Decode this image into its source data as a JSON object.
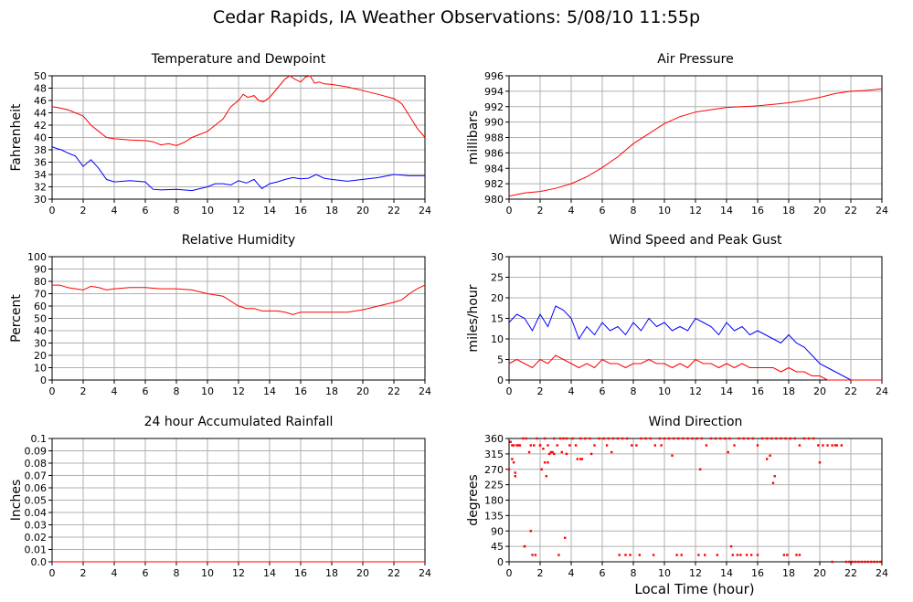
{
  "page": {
    "title": "Cedar Rapids, IA Weather Observations: 5/08/10 11:55p",
    "x_axis_label": "Local Time (hour)"
  },
  "colors": {
    "primary": "#ff0000",
    "secondary": "#0000ff",
    "grid": "#b0b0b0",
    "axis": "#000000"
  },
  "chart_data": [
    {
      "id": "temp",
      "type": "line",
      "title": "Temperature and Dewpoint",
      "ylabel": "Fahrenheit",
      "xlim": [
        0,
        24
      ],
      "ylim": [
        30,
        50
      ],
      "xticks": [
        0,
        2,
        4,
        6,
        8,
        10,
        12,
        14,
        16,
        18,
        20,
        22,
        24
      ],
      "yticks": [
        30,
        32,
        34,
        36,
        38,
        40,
        42,
        44,
        46,
        48,
        50
      ],
      "series": [
        {
          "color": "#ff0000",
          "x": [
            0,
            0.5,
            1,
            1.5,
            2,
            2.5,
            3,
            3.5,
            4,
            5,
            6,
            6.5,
            7,
            7.5,
            8,
            8.5,
            9,
            9.5,
            10,
            10.5,
            11,
            11.5,
            12,
            12.3,
            12.6,
            13,
            13.3,
            13.6,
            14,
            14.5,
            15,
            15.3,
            15.6,
            16,
            16.3,
            16.6,
            16.9,
            17.2,
            17.5,
            18,
            19,
            20,
            21,
            22,
            22.5,
            23,
            23.5,
            24
          ],
          "y": [
            45,
            44.8,
            44.5,
            44,
            43.5,
            42,
            41,
            40,
            39.8,
            39.6,
            39.5,
            39.3,
            38.8,
            39,
            38.7,
            39.2,
            40,
            40.5,
            41,
            42,
            43,
            45,
            46,
            47,
            46.5,
            46.8,
            46,
            45.8,
            46.5,
            48,
            49.5,
            50,
            49.5,
            49,
            49.8,
            50,
            48.8,
            49,
            48.7,
            48.6,
            48.2,
            47.6,
            47,
            46.3,
            45.5,
            43.5,
            41.5,
            40
          ]
        },
        {
          "color": "#0000ff",
          "x": [
            0,
            0.3,
            0.6,
            1,
            1.5,
            2,
            2.5,
            3,
            3.5,
            4,
            5,
            6,
            6.5,
            7,
            8,
            9,
            10,
            10.5,
            11,
            11.5,
            12,
            12.5,
            13,
            13.5,
            14,
            14.5,
            15,
            15.5,
            16,
            16.5,
            17,
            17.5,
            18,
            19,
            20,
            21,
            22,
            23,
            24
          ],
          "y": [
            38.5,
            38.2,
            38,
            37.5,
            37,
            35.3,
            36.4,
            35,
            33.2,
            32.8,
            33,
            32.8,
            31.6,
            31.5,
            31.6,
            31.4,
            32,
            32.5,
            32.5,
            32.3,
            33,
            32.6,
            33.2,
            31.7,
            32.5,
            32.8,
            33.2,
            33.5,
            33.3,
            33.4,
            34,
            33.4,
            33.2,
            32.9,
            33.2,
            33.5,
            34,
            33.8,
            33.8
          ]
        }
      ]
    },
    {
      "id": "pressure",
      "type": "line",
      "title": "Air Pressure",
      "ylabel": "millibars",
      "xlim": [
        0,
        24
      ],
      "ylim": [
        980,
        996
      ],
      "xticks": [
        0,
        2,
        4,
        6,
        8,
        10,
        12,
        14,
        16,
        18,
        20,
        22,
        24
      ],
      "yticks": [
        980,
        982,
        984,
        986,
        988,
        990,
        992,
        994,
        996
      ],
      "series": [
        {
          "color": "#ff0000",
          "x": [
            0,
            1,
            2,
            3,
            4,
            5,
            6,
            7,
            8,
            9,
            10,
            11,
            12,
            13,
            14,
            15,
            16,
            17,
            18,
            19,
            20,
            21,
            22,
            23,
            24
          ],
          "y": [
            980.4,
            980.8,
            981,
            981.4,
            982,
            982.9,
            984.1,
            985.5,
            987.2,
            988.5,
            989.8,
            990.7,
            991.3,
            991.6,
            991.9,
            992,
            992.1,
            992.3,
            992.5,
            992.8,
            993.2,
            993.7,
            994,
            994.1,
            994.3
          ]
        }
      ]
    },
    {
      "id": "humidity",
      "type": "line",
      "title": "Relative Humidity",
      "ylabel": "Percent",
      "xlim": [
        0,
        24
      ],
      "ylim": [
        0,
        100
      ],
      "xticks": [
        0,
        2,
        4,
        6,
        8,
        10,
        12,
        14,
        16,
        18,
        20,
        22,
        24
      ],
      "yticks": [
        0,
        10,
        20,
        30,
        40,
        50,
        60,
        70,
        80,
        90,
        100
      ],
      "series": [
        {
          "color": "#ff0000",
          "x": [
            0,
            0.5,
            1,
            1.5,
            2,
            2.5,
            3,
            3.5,
            4,
            5,
            6,
            7,
            8,
            9,
            10,
            10.5,
            11,
            11.5,
            12,
            12.5,
            13,
            13.5,
            14,
            14.5,
            15,
            15.5,
            16,
            17,
            18,
            19,
            20,
            21,
            22,
            22.5,
            23,
            23.5,
            24
          ],
          "y": [
            77,
            77,
            75,
            74,
            73,
            76,
            75,
            73,
            74,
            75,
            75,
            74,
            74,
            73,
            70,
            69,
            68,
            64,
            60,
            58,
            58,
            56,
            56,
            56,
            55,
            53,
            55,
            55,
            55,
            55,
            57,
            60,
            63,
            65,
            70,
            74,
            77
          ]
        }
      ]
    },
    {
      "id": "wind",
      "type": "line",
      "title": "Wind Speed and Peak Gust",
      "ylabel": "miles/hour",
      "xlim": [
        0,
        24
      ],
      "ylim": [
        0,
        30
      ],
      "xticks": [
        0,
        2,
        4,
        6,
        8,
        10,
        12,
        14,
        16,
        18,
        20,
        22,
        24
      ],
      "yticks": [
        0,
        5,
        10,
        15,
        20,
        25,
        30
      ],
      "series": [
        {
          "color": "#0000ff",
          "x": [
            0,
            0.5,
            1,
            1.5,
            2,
            2.5,
            3,
            3.5,
            4,
            4.5,
            5,
            5.5,
            6,
            6.5,
            7,
            7.5,
            8,
            8.5,
            9,
            9.5,
            10,
            10.5,
            11,
            11.5,
            12,
            12.5,
            13,
            13.5,
            14,
            14.5,
            15,
            15.5,
            16,
            16.5,
            17,
            17.5,
            18,
            18.5,
            19,
            19.5,
            20,
            20.5,
            21,
            21.5,
            22,
            22.5,
            23,
            23.5,
            24
          ],
          "y": [
            14,
            16,
            15,
            12,
            16,
            13,
            18,
            17,
            15,
            10,
            13,
            11,
            14,
            12,
            13,
            11,
            14,
            12,
            15,
            13,
            14,
            12,
            13,
            12,
            15,
            14,
            13,
            11,
            14,
            12,
            13,
            11,
            12,
            11,
            10,
            9,
            11,
            9,
            8,
            6,
            4,
            3,
            2,
            1,
            0,
            0,
            0,
            0,
            0
          ]
        },
        {
          "color": "#ff0000",
          "x": [
            0,
            0.5,
            1,
            1.5,
            2,
            2.5,
            3,
            3.5,
            4,
            4.5,
            5,
            5.5,
            6,
            6.5,
            7,
            7.5,
            8,
            8.5,
            9,
            9.5,
            10,
            10.5,
            11,
            11.5,
            12,
            12.5,
            13,
            13.5,
            14,
            14.5,
            15,
            15.5,
            16,
            16.5,
            17,
            17.5,
            18,
            18.5,
            19,
            19.5,
            20,
            20.5,
            21,
            21.5,
            22,
            22.5,
            23,
            23.5,
            24
          ],
          "y": [
            4,
            5,
            4,
            3,
            5,
            4,
            6,
            5,
            4,
            3,
            4,
            3,
            5,
            4,
            4,
            3,
            4,
            4,
            5,
            4,
            4,
            3,
            4,
            3,
            5,
            4,
            4,
            3,
            4,
            3,
            4,
            3,
            3,
            3,
            3,
            2,
            3,
            2,
            2,
            1,
            1,
            0,
            0,
            0,
            0,
            0,
            0,
            0,
            0
          ]
        }
      ]
    },
    {
      "id": "rain",
      "type": "line",
      "title": "24 hour Accumulated Rainfall",
      "ylabel": "Inches",
      "xlim": [
        0,
        24
      ],
      "ylim": [
        0,
        0.1
      ],
      "xticks": [
        0,
        2,
        4,
        6,
        8,
        10,
        12,
        14,
        16,
        18,
        20,
        22,
        24
      ],
      "yticks": [
        "0.0",
        "0.01",
        "0.02",
        "0.03",
        "0.04",
        "0.05",
        "0.06",
        "0.07",
        "0.08",
        "0.09",
        "0.1"
      ],
      "series": [
        {
          "color": "#ff0000",
          "x": [
            0,
            24
          ],
          "y": [
            0,
            0
          ]
        }
      ]
    },
    {
      "id": "direction",
      "type": "scatter",
      "title": "Wind Direction",
      "ylabel": "degrees",
      "xlim": [
        0,
        24
      ],
      "ylim": [
        0,
        360
      ],
      "xticks": [
        0,
        2,
        4,
        6,
        8,
        10,
        12,
        14,
        16,
        18,
        20,
        22,
        24
      ],
      "yticks": [
        0,
        45,
        90,
        135,
        180,
        225,
        270,
        315,
        360
      ],
      "series": [
        {
          "color": "#ff0000",
          "x": [
            0.1,
            0.2,
            0.3,
            0.5,
            0.7,
            0.9,
            1.1,
            1.4,
            1.6,
            1.8,
            2.0,
            2.2,
            2.3,
            2.5,
            2.7,
            2.9,
            3.1,
            3.3,
            3.5,
            3.7,
            3.9,
            4.1,
            4.3,
            4.6,
            4.9,
            5.2,
            5.5,
            5.8,
            6.1,
            6.4,
            6.7,
            7.0,
            7.3,
            7.6,
            7.9,
            8.2,
            8.5,
            8.8,
            9.1,
            9.4,
            9.7,
            10.0,
            10.3,
            10.6,
            10.9,
            11.2,
            11.5,
            11.8,
            12.1,
            12.4,
            12.7,
            13.0,
            13.3,
            13.6,
            13.9,
            14.2,
            14.5,
            14.8,
            15.1,
            15.4,
            15.7,
            16.0,
            16.3,
            16.6,
            16.9,
            17.2,
            17.5,
            17.8,
            18.1,
            18.4,
            18.7,
            19.0,
            19.3,
            19.6,
            19.9,
            20.2,
            20.5,
            20.8,
            21.1,
            21.4,
            0.2,
            0.3,
            1.3,
            1.5,
            2.3,
            2.6,
            2.9,
            3.4,
            3.7,
            0.4,
            0.6,
            1.0,
            1.7,
            2.1,
            2.4,
            2.8,
            3.2,
            4.7,
            5.3,
            6.3,
            7.1,
            7.5,
            7.8,
            8.4,
            9.3,
            9.8,
            10.8,
            11.1,
            12.2,
            12.6,
            13.4,
            14.4,
            14.7,
            14.9,
            15.3,
            15.6,
            16.0,
            17.7,
            17.9,
            18.5,
            18.7,
            0.0,
            0.4,
            2.0,
            2.5,
            4.4,
            4.6,
            6.6,
            10.5,
            12.3,
            14.1,
            16.6,
            16.8,
            17.0,
            20.0,
            21.0,
            1.0,
            1.4,
            3.6,
            14.3,
            17.1,
            21.7,
            21.9,
            22.1,
            22.3,
            22.5,
            22.7,
            22.9,
            23.1,
            23.3,
            23.5,
            23.7,
            23.9,
            20.8
          ],
          "y": [
            350,
            340,
            340,
            340,
            340,
            360,
            360,
            340,
            340,
            360,
            340,
            330,
            360,
            340,
            320,
            360,
            340,
            360,
            360,
            360,
            340,
            360,
            340,
            360,
            360,
            360,
            340,
            360,
            360,
            360,
            360,
            360,
            360,
            360,
            340,
            340,
            360,
            360,
            360,
            340,
            360,
            360,
            360,
            360,
            360,
            360,
            360,
            360,
            360,
            360,
            340,
            360,
            360,
            360,
            360,
            360,
            340,
            360,
            360,
            360,
            360,
            340,
            360,
            360,
            360,
            360,
            360,
            360,
            360,
            360,
            340,
            360,
            360,
            360,
            340,
            340,
            340,
            340,
            340,
            340,
            300,
            290,
            320,
            20,
            290,
            315,
            315,
            320,
            315,
            250,
            340,
            45,
            20,
            270,
            250,
            320,
            20,
            300,
            315,
            340,
            20,
            20,
            20,
            20,
            20,
            340,
            20,
            20,
            20,
            20,
            20,
            20,
            20,
            20,
            20,
            20,
            20,
            20,
            20,
            20,
            20,
            270,
            260,
            340,
            290,
            300,
            300,
            320,
            310,
            270,
            320,
            300,
            310,
            230,
            290,
            340,
            45,
            90,
            70,
            45,
            250,
            0,
            0,
            0,
            0,
            0,
            0,
            0,
            0,
            0,
            0,
            0,
            0,
            0
          ]
        }
      ]
    }
  ]
}
